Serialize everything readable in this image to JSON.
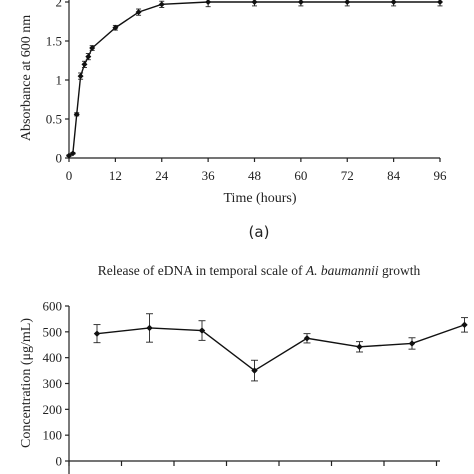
{
  "chart_data": [
    {
      "type": "line",
      "panel_label": "(a)",
      "title": "",
      "xlabel": "Time (hours)",
      "ylabel": "Absorbance at 600 nm",
      "xlim": [
        0,
        96
      ],
      "ylim": [
        0,
        2
      ],
      "x_ticks": [
        "0",
        "12",
        "24",
        "36",
        "48",
        "60",
        "72",
        "84",
        "96"
      ],
      "y_ticks": [
        "0",
        "0.5",
        "1",
        "1.5",
        "2"
      ],
      "grid": false,
      "legend": "none",
      "series": [
        {
          "x": [
            0,
            1,
            2,
            3,
            4,
            5,
            6,
            12,
            18,
            24,
            36,
            48,
            60,
            72,
            84,
            96
          ],
          "values": [
            0.03,
            0.06,
            0.56,
            1.05,
            1.2,
            1.3,
            1.41,
            1.67,
            1.87,
            1.97,
            2.0,
            2.0,
            2.0,
            2.0,
            2.0,
            2.0
          ],
          "error": [
            0.01,
            0.01,
            0.02,
            0.04,
            0.04,
            0.04,
            0.03,
            0.03,
            0.04,
            0.04,
            0.06,
            0.05,
            0.05,
            0.05,
            0.05,
            0.05
          ]
        }
      ]
    },
    {
      "type": "line",
      "title_prefix": "Release of eDNA in temporal scale of ",
      "title_italic": "A. baumannii",
      "title_suffix": " growth",
      "xlabel": "",
      "ylabel": "Concentration (μg/mL)",
      "ylim": [
        0,
        600
      ],
      "y_ticks": [
        "0",
        "100",
        "200",
        "300",
        "400",
        "500",
        "600"
      ],
      "grid": false,
      "legend": "none",
      "series": [
        {
          "x": [
            1,
            2,
            3,
            4,
            5,
            6,
            7,
            8
          ],
          "values": [
            493,
            515,
            505,
            350,
            475,
            442,
            455,
            527
          ],
          "error": [
            35,
            55,
            38,
            40,
            18,
            20,
            22,
            28
          ]
        }
      ]
    }
  ]
}
